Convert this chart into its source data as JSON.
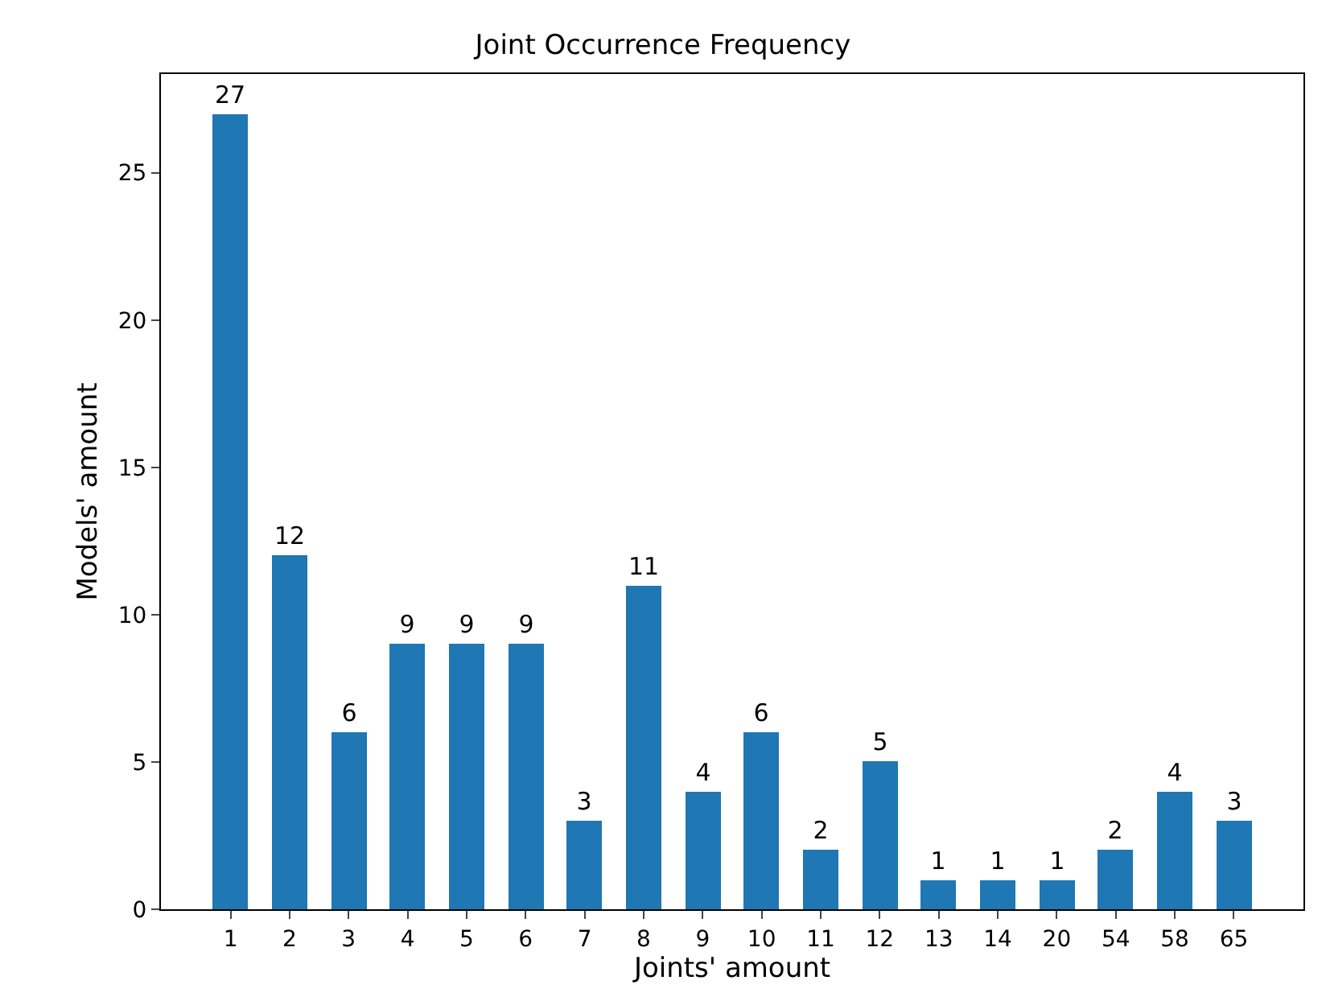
{
  "chart_data": {
    "type": "bar",
    "title": "Joint Occurrence Frequency",
    "xlabel": "Joints' amount",
    "ylabel": "Models' amount",
    "categories": [
      "1",
      "2",
      "3",
      "4",
      "5",
      "6",
      "7",
      "8",
      "9",
      "10",
      "11",
      "12",
      "13",
      "14",
      "20",
      "54",
      "58",
      "65"
    ],
    "values": [
      27,
      12,
      6,
      9,
      9,
      9,
      3,
      11,
      4,
      6,
      2,
      5,
      1,
      1,
      1,
      2,
      4,
      3
    ],
    "color": "#1f77b4",
    "ylim": [
      0,
      28.35
    ],
    "yticks": [
      0,
      5,
      10,
      15,
      20,
      25
    ],
    "data_labels": true
  }
}
